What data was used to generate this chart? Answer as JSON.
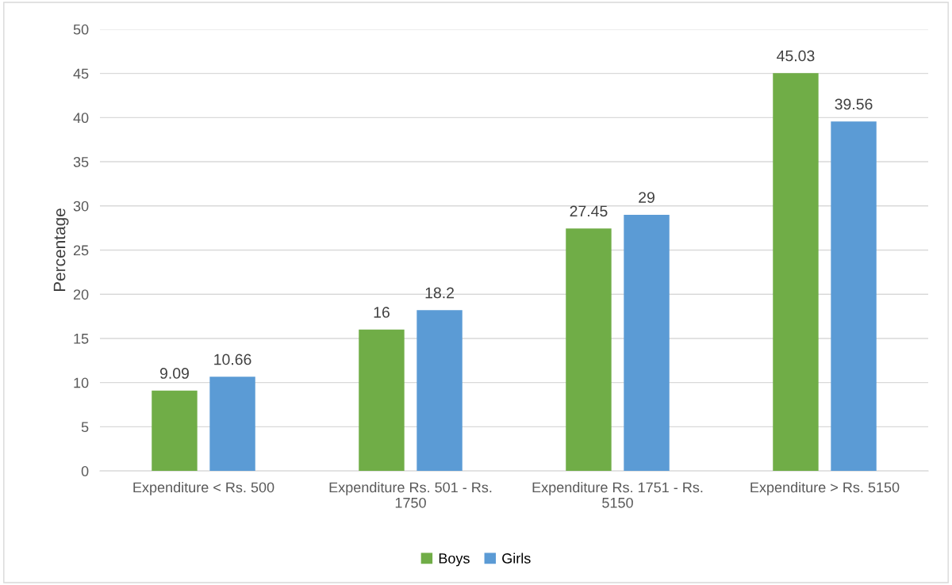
{
  "chart_data": {
    "type": "bar",
    "ylabel": "Percentage",
    "categories": [
      "Expenditure < Rs. 500",
      "Expenditure Rs. 501 - Rs. 1750",
      "Expenditure Rs. 1751 - Rs. 5150",
      "Expenditure > Rs. 5150"
    ],
    "series": [
      {
        "name": "Boys",
        "color": "#70ad47",
        "values": [
          9.09,
          16,
          27.45,
          45.03
        ]
      },
      {
        "name": "Girls",
        "color": "#5b9bd5",
        "values": [
          10.66,
          18.2,
          29,
          39.56
        ]
      }
    ],
    "ylim": [
      0,
      50
    ],
    "yticks": [
      0,
      5,
      10,
      15,
      20,
      25,
      30,
      35,
      40,
      45,
      50
    ],
    "grid": "y",
    "legend": "bottom",
    "data_labels": true
  }
}
